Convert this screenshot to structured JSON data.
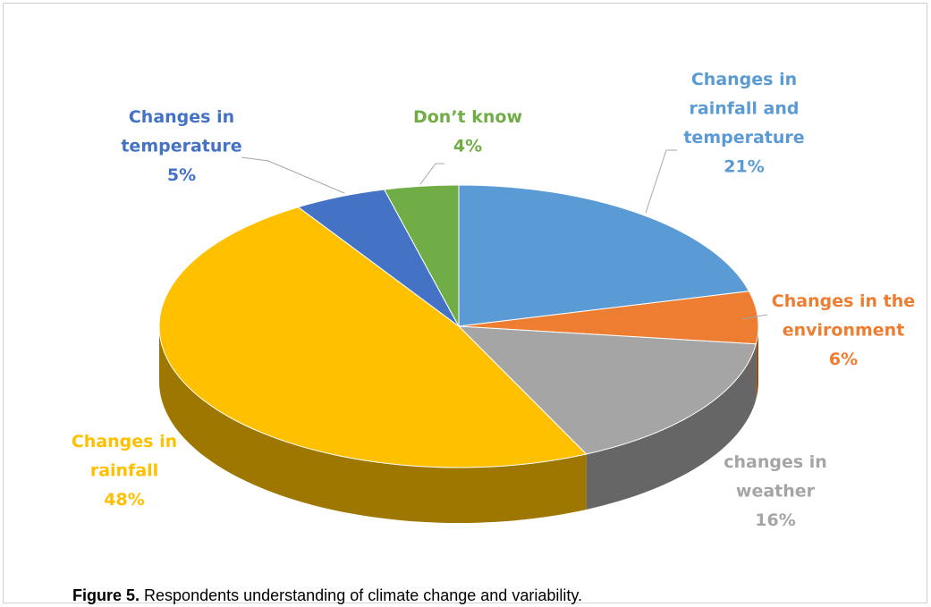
{
  "chart_data": {
    "type": "pie3d",
    "categories": [
      "Changes in rainfall and temperature",
      "Changes in the environment",
      "changes in weather",
      "Changes in rainfall",
      "Changes in temperature",
      "Don’t know"
    ],
    "values": [
      21,
      6,
      16,
      48,
      5,
      4
    ],
    "value_labels": [
      "21%",
      "6%",
      "16%",
      "48%",
      "5%",
      "4%"
    ],
    "colors": [
      "#5b9bd5",
      "#ed7d31",
      "#a5a5a5",
      "#ffc000",
      "#4472c4",
      "#70ad47"
    ],
    "caption": {
      "label": "Figure 5.",
      "text": "Respondents understanding of climate change and variability."
    }
  }
}
